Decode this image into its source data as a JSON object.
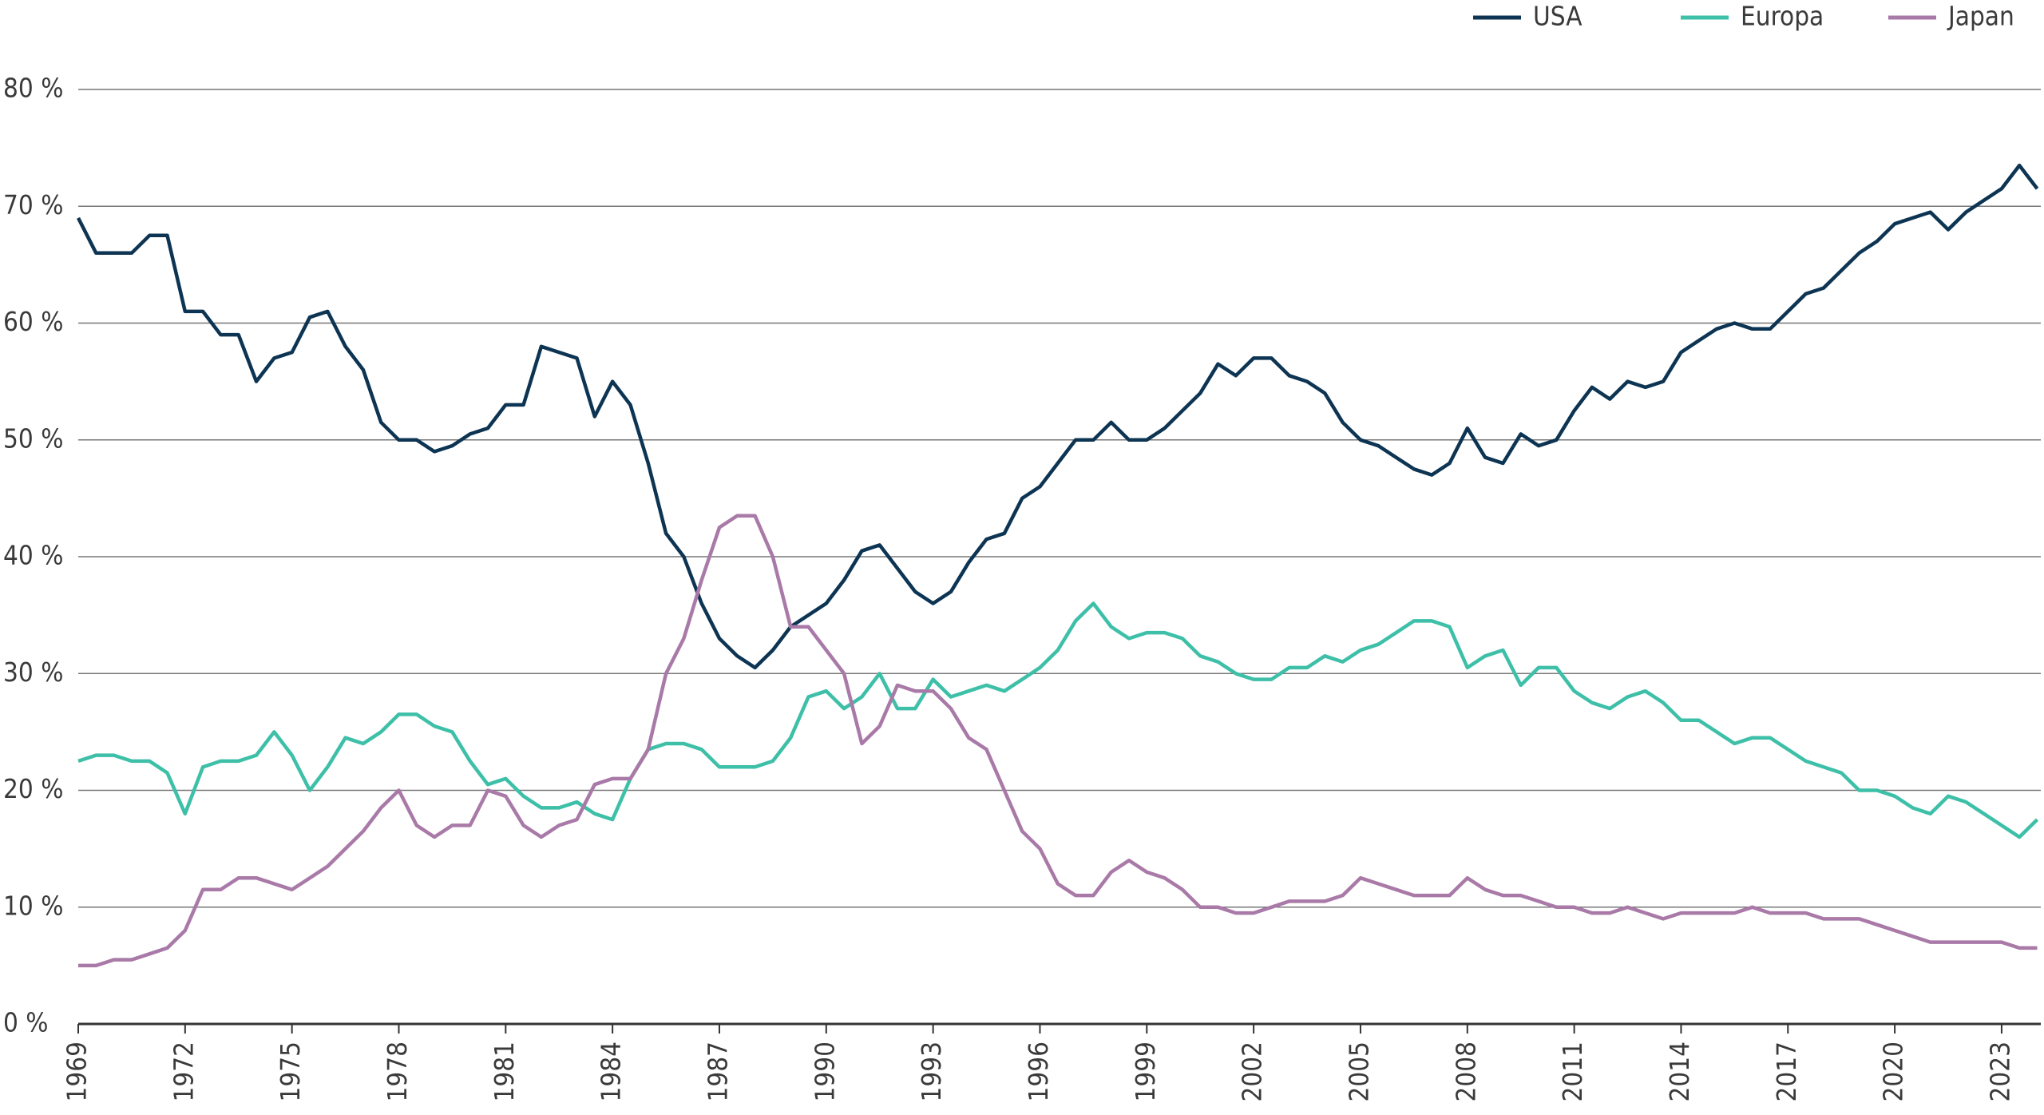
{
  "chart_data": {
    "type": "line",
    "x": [
      1969,
      1969.5,
      1970,
      1970.5,
      1971,
      1971.5,
      1972,
      1972.5,
      1973,
      1973.5,
      1974,
      1974.5,
      1975,
      1975.5,
      1976,
      1976.5,
      1977,
      1977.5,
      1978,
      1978.5,
      1979,
      1979.5,
      1980,
      1980.5,
      1981,
      1981.5,
      1982,
      1982.5,
      1983,
      1983.5,
      1984,
      1984.5,
      1985,
      1985.5,
      1986,
      1986.5,
      1987,
      1987.5,
      1988,
      1988.5,
      1989,
      1989.5,
      1990,
      1990.5,
      1991,
      1991.5,
      1992,
      1992.5,
      1993,
      1993.5,
      1994,
      1994.5,
      1995,
      1995.5,
      1996,
      1996.5,
      1997,
      1997.5,
      1998,
      1998.5,
      1999,
      1999.5,
      2000,
      2000.5,
      2001,
      2001.5,
      2002,
      2002.5,
      2003,
      2003.5,
      2004,
      2004.5,
      2005,
      2005.5,
      2006,
      2006.5,
      2007,
      2007.5,
      2008,
      2008.5,
      2009,
      2009.5,
      2010,
      2010.5,
      2011,
      2011.5,
      2012,
      2012.5,
      2013,
      2013.5,
      2014,
      2014.5,
      2015,
      2015.5,
      2016,
      2016.5,
      2017,
      2017.5,
      2018,
      2018.5,
      2019,
      2019.5,
      2020,
      2020.5,
      2021,
      2021.5,
      2022,
      2022.5,
      2023,
      2023.5,
      2024
    ],
    "series": [
      {
        "name": "USA",
        "color": "#0d3553",
        "values": [
          69,
          66,
          66,
          66,
          67.5,
          67.5,
          61,
          61,
          59,
          59,
          55,
          57,
          57.5,
          60.5,
          61,
          58,
          56,
          51.5,
          50,
          50,
          49,
          49.5,
          50.5,
          51,
          53,
          53,
          58,
          57.5,
          57,
          52,
          55,
          53,
          48,
          42,
          40,
          36,
          33,
          31.5,
          30.5,
          32,
          34,
          35,
          36,
          38,
          40.5,
          41,
          39,
          37,
          36,
          37,
          39.5,
          41.5,
          42,
          45,
          46,
          48,
          50,
          50,
          51.5,
          50,
          50,
          51,
          52.5,
          54,
          56.5,
          55.5,
          57,
          57,
          55.5,
          55,
          54,
          51.5,
          50,
          49.5,
          48.5,
          47.5,
          47,
          48,
          51,
          48.5,
          48,
          50.5,
          49.5,
          50,
          52.5,
          54.5,
          53.5,
          55,
          54.5,
          55,
          57.5,
          58.5,
          59.5,
          60,
          59.5,
          59.5,
          61,
          62.5,
          63,
          64.5,
          66,
          67,
          68.5,
          69,
          69.5,
          68,
          69.5,
          70.5,
          71.5,
          73.5,
          71.5
        ]
      },
      {
        "name": "Europa",
        "color": "#3dbfa8",
        "values": [
          22.5,
          23,
          23,
          22.5,
          22.5,
          21.5,
          18,
          22,
          22.5,
          22.5,
          23,
          25,
          23,
          20,
          22,
          24.5,
          24,
          25,
          26.5,
          26.5,
          25.5,
          25,
          22.5,
          20.5,
          21,
          19.5,
          18.5,
          18.5,
          19,
          18,
          17.5,
          21,
          23.5,
          24,
          24,
          23.5,
          22,
          22,
          22,
          22.5,
          24.5,
          28,
          28.5,
          27,
          28,
          30,
          27,
          27,
          29.5,
          28,
          28.5,
          29,
          28.5,
          29.5,
          30.5,
          32,
          34.5,
          36,
          34,
          33,
          33.5,
          33.5,
          33,
          31.5,
          31,
          30,
          29.5,
          29.5,
          30.5,
          30.5,
          31.5,
          31,
          32,
          32.5,
          33.5,
          34.5,
          34.5,
          34,
          30.5,
          31.5,
          32,
          29,
          30.5,
          30.5,
          28.5,
          27.5,
          27,
          28,
          28.5,
          27.5,
          26,
          26,
          25,
          24,
          24.5,
          24.5,
          23.5,
          22.5,
          22,
          21.5,
          20,
          20,
          19.5,
          18.5,
          18,
          19.5,
          19,
          18,
          17,
          16,
          17.5
        ]
      },
      {
        "name": "Japan",
        "color": "#a97aa8",
        "values": [
          5,
          5,
          5.5,
          5.5,
          6,
          6.5,
          8,
          11.5,
          11.5,
          12.5,
          12.5,
          12,
          11.5,
          12.5,
          13.5,
          15,
          16.5,
          18.5,
          20,
          17,
          16,
          17,
          17,
          20,
          19.5,
          17,
          16,
          17,
          17.5,
          20.5,
          21,
          21,
          23.5,
          30,
          33,
          38,
          42.5,
          43.5,
          43.5,
          40,
          34,
          34,
          32,
          30,
          24,
          25.5,
          29,
          28.5,
          28.5,
          27,
          24.5,
          23.5,
          20,
          16.5,
          15,
          12,
          11,
          11,
          13,
          14,
          13,
          12.5,
          11.5,
          10,
          10,
          9.5,
          9.5,
          10,
          10.5,
          10.5,
          10.5,
          11,
          12.5,
          12,
          11.5,
          11,
          11,
          11,
          12.5,
          11.5,
          11,
          11,
          10.5,
          10,
          10,
          9.5,
          9.5,
          10,
          9.5,
          9,
          9.5,
          9.5,
          9.5,
          9.5,
          10,
          9.5,
          9.5,
          9.5,
          9,
          9,
          9,
          8.5,
          8,
          7.5,
          7,
          7,
          7,
          7,
          7,
          6.5,
          6.5
        ]
      }
    ],
    "xlim": [
      1969,
      2024.1
    ],
    "ylim": [
      0,
      80
    ],
    "xticks": [
      1969,
      1972,
      1975,
      1978,
      1981,
      1984,
      1987,
      1990,
      1993,
      1996,
      1999,
      2002,
      2005,
      2008,
      2011,
      2014,
      2017,
      2020,
      2023
    ],
    "yticks": [
      {
        "value": 0,
        "label": "0 %"
      },
      {
        "value": 10,
        "label": "10 %"
      },
      {
        "value": 20,
        "label": "20 %"
      },
      {
        "value": 30,
        "label": "30 %"
      },
      {
        "value": 40,
        "label": "40 %"
      },
      {
        "value": 50,
        "label": "50 %"
      },
      {
        "value": 60,
        "label": "60 %"
      },
      {
        "value": 70,
        "label": "70 %"
      },
      {
        "value": 80,
        "label": "80 %"
      }
    ],
    "grid": true,
    "legend": "top-right"
  }
}
